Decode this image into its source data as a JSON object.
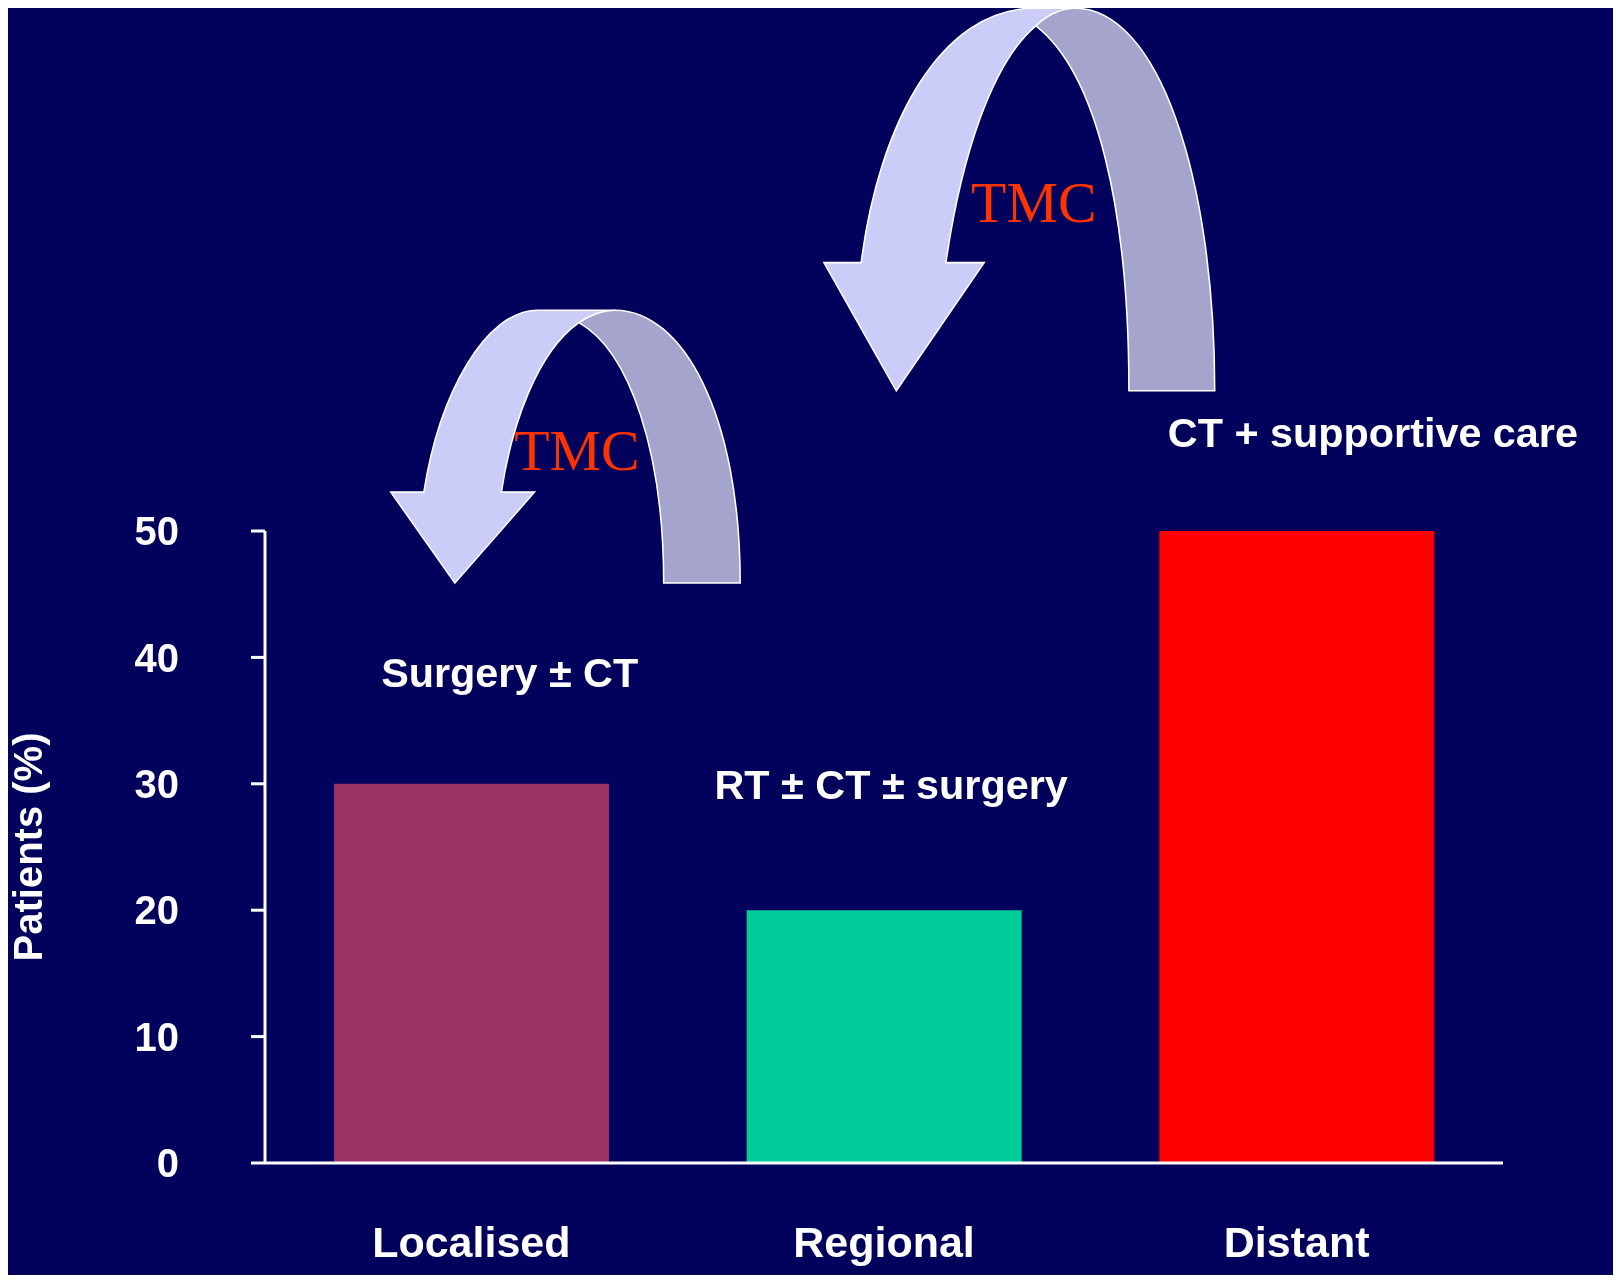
{
  "chart_data": {
    "type": "bar",
    "ylabel": "Patients (%)",
    "categories": [
      "Localised",
      "Regional",
      "Distant"
    ],
    "values": [
      30,
      20,
      50
    ],
    "colors": [
      "#993366",
      "#00cc99",
      "#ff0000"
    ],
    "ylim": [
      0,
      50
    ],
    "yticks": [
      0,
      10,
      20,
      30,
      40,
      50
    ],
    "grid": false,
    "legend": false,
    "annotations": [
      "TMC",
      "TMC",
      "Surgery ± CT",
      "RT ± CT ± surgery",
      "CT + supportive care"
    ]
  }
}
